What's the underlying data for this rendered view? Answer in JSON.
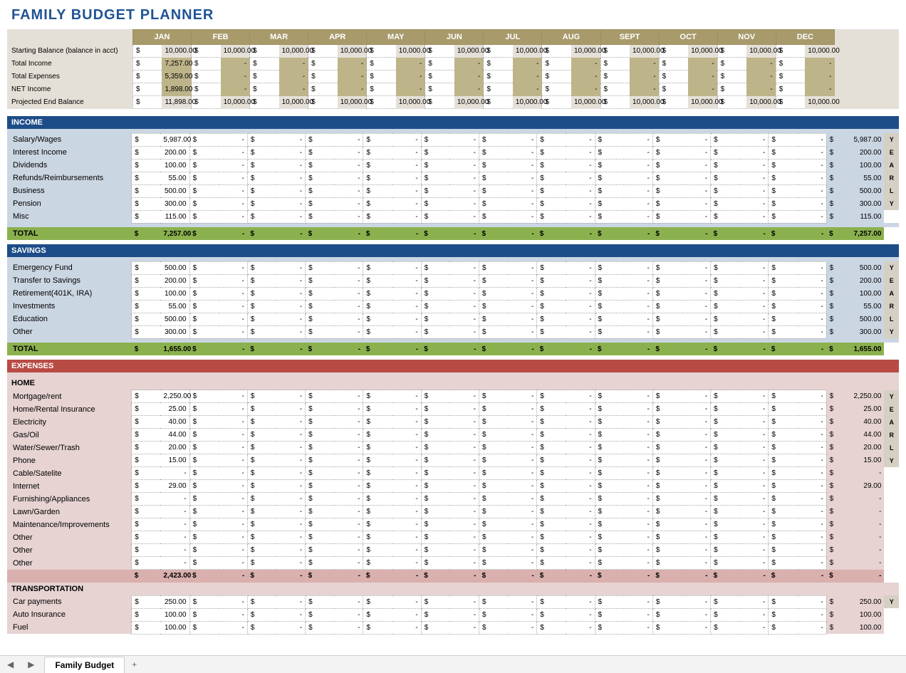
{
  "title": "FAMILY BUDGET PLANNER",
  "months": [
    "JAN",
    "FEB",
    "MAR",
    "APR",
    "MAY",
    "JUN",
    "JUL",
    "AUG",
    "SEPT",
    "OCT",
    "NOV",
    "DEC"
  ],
  "currency": "$",
  "yearly_label": [
    "Y",
    "E",
    "A",
    "R",
    "L",
    "Y"
  ],
  "summary": {
    "rows": [
      {
        "label": "Starting Balance (balance in acct)",
        "highlight": false,
        "cells": [
          "10,000.00",
          "10,000.00",
          "10,000.00",
          "10,000.00",
          "10,000.00",
          "10,000.00",
          "10,000.00",
          "10,000.00",
          "10,000.00",
          "10,000.00",
          "10,000.00",
          "10,000.00"
        ]
      },
      {
        "label": "Total Income",
        "highlight": true,
        "cells": [
          "7,257.00",
          "-",
          "-",
          "-",
          "-",
          "-",
          "-",
          "-",
          "-",
          "-",
          "-",
          "-"
        ]
      },
      {
        "label": "Total Expenses",
        "highlight": true,
        "cells": [
          "5,359.00",
          "-",
          "-",
          "-",
          "-",
          "-",
          "-",
          "-",
          "-",
          "-",
          "-",
          "-"
        ]
      },
      {
        "label": "NET Income",
        "highlight": true,
        "cells": [
          "1,898.00",
          "-",
          "-",
          "-",
          "-",
          "-",
          "-",
          "-",
          "-",
          "-",
          "-",
          "-"
        ]
      },
      {
        "label": "Projected End Balance",
        "highlight": false,
        "cells": [
          "11,898.00",
          "10,000.00",
          "10,000.00",
          "10,000.00",
          "10,000.00",
          "10,000.00",
          "10,000.00",
          "10,000.00",
          "10,000.00",
          "10,000.00",
          "10,000.00",
          "10,000.00"
        ]
      }
    ]
  },
  "sections": [
    {
      "title": "INCOME",
      "bar": "blue",
      "zone": "blue",
      "rows": [
        {
          "label": "Salary/Wages",
          "cells": [
            "5,987.00",
            "-",
            "-",
            "-",
            "-",
            "-",
            "-",
            "-",
            "-",
            "-",
            "-",
            "-"
          ],
          "yearly": "5,987.00"
        },
        {
          "label": "Interest Income",
          "cells": [
            "200.00",
            "-",
            "-",
            "-",
            "-",
            "-",
            "-",
            "-",
            "-",
            "-",
            "-",
            "-"
          ],
          "yearly": "200.00"
        },
        {
          "label": "Dividends",
          "cells": [
            "100.00",
            "-",
            "-",
            "-",
            "-",
            "-",
            "-",
            "-",
            "-",
            "-",
            "-",
            "-"
          ],
          "yearly": "100.00"
        },
        {
          "label": "Refunds/Reimbursements",
          "cells": [
            "55.00",
            "-",
            "-",
            "-",
            "-",
            "-",
            "-",
            "-",
            "-",
            "-",
            "-",
            "-"
          ],
          "yearly": "55.00"
        },
        {
          "label": "Business",
          "cells": [
            "500.00",
            "-",
            "-",
            "-",
            "-",
            "-",
            "-",
            "-",
            "-",
            "-",
            "-",
            "-"
          ],
          "yearly": "500.00"
        },
        {
          "label": "Pension",
          "cells": [
            "300.00",
            "-",
            "-",
            "-",
            "-",
            "-",
            "-",
            "-",
            "-",
            "-",
            "-",
            "-"
          ],
          "yearly": "300.00"
        },
        {
          "label": "Misc",
          "cells": [
            "115.00",
            "-",
            "-",
            "-",
            "-",
            "-",
            "-",
            "-",
            "-",
            "-",
            "-",
            "-"
          ],
          "yearly": "115.00"
        }
      ],
      "total": {
        "label": "TOTAL",
        "cells": [
          "7,257.00",
          "-",
          "-",
          "-",
          "-",
          "-",
          "-",
          "-",
          "-",
          "-",
          "-",
          "-"
        ],
        "yearly": "7,257.00"
      }
    },
    {
      "title": "SAVINGS",
      "bar": "blue",
      "zone": "blue",
      "rows": [
        {
          "label": "Emergency Fund",
          "cells": [
            "500.00",
            "-",
            "-",
            "-",
            "-",
            "-",
            "-",
            "-",
            "-",
            "-",
            "-",
            "-"
          ],
          "yearly": "500.00"
        },
        {
          "label": "Transfer to Savings",
          "cells": [
            "200.00",
            "-",
            "-",
            "-",
            "-",
            "-",
            "-",
            "-",
            "-",
            "-",
            "-",
            "-"
          ],
          "yearly": "200.00"
        },
        {
          "label": "Retirement(401K, IRA)",
          "cells": [
            "100.00",
            "-",
            "-",
            "-",
            "-",
            "-",
            "-",
            "-",
            "-",
            "-",
            "-",
            "-"
          ],
          "yearly": "100.00"
        },
        {
          "label": "Investments",
          "cells": [
            "55.00",
            "-",
            "-",
            "-",
            "-",
            "-",
            "-",
            "-",
            "-",
            "-",
            "-",
            "-"
          ],
          "yearly": "55.00"
        },
        {
          "label": "Education",
          "cells": [
            "500.00",
            "-",
            "-",
            "-",
            "-",
            "-",
            "-",
            "-",
            "-",
            "-",
            "-",
            "-"
          ],
          "yearly": "500.00"
        },
        {
          "label": "Other",
          "cells": [
            "300.00",
            "-",
            "-",
            "-",
            "-",
            "-",
            "-",
            "-",
            "-",
            "-",
            "-",
            "-"
          ],
          "yearly": "300.00"
        }
      ],
      "total": {
        "label": "TOTAL",
        "cells": [
          "1,655.00",
          "-",
          "-",
          "-",
          "-",
          "-",
          "-",
          "-",
          "-",
          "-",
          "-",
          "-"
        ],
        "yearly": "1,655.00"
      }
    },
    {
      "title": "EXPENSES",
      "bar": "red",
      "zone": "pink",
      "groups": [
        {
          "sub": "HOME",
          "rows": [
            {
              "label": "Mortgage/rent",
              "cells": [
                "2,250.00",
                "-",
                "-",
                "-",
                "-",
                "-",
                "-",
                "-",
                "-",
                "-",
                "-",
                "-"
              ],
              "yearly": "2,250.00"
            },
            {
              "label": "Home/Rental Insurance",
              "cells": [
                "25.00",
                "-",
                "-",
                "-",
                "-",
                "-",
                "-",
                "-",
                "-",
                "-",
                "-",
                "-"
              ],
              "yearly": "25.00"
            },
            {
              "label": "Electricity",
              "cells": [
                "40.00",
                "-",
                "-",
                "-",
                "-",
                "-",
                "-",
                "-",
                "-",
                "-",
                "-",
                "-"
              ],
              "yearly": "40.00"
            },
            {
              "label": "Gas/Oil",
              "cells": [
                "44.00",
                "-",
                "-",
                "-",
                "-",
                "-",
                "-",
                "-",
                "-",
                "-",
                "-",
                "-"
              ],
              "yearly": "44.00"
            },
            {
              "label": "Water/Sewer/Trash",
              "cells": [
                "20.00",
                "-",
                "-",
                "-",
                "-",
                "-",
                "-",
                "-",
                "-",
                "-",
                "-",
                "-"
              ],
              "yearly": "20.00"
            },
            {
              "label": "Phone",
              "cells": [
                "15.00",
                "-",
                "-",
                "-",
                "-",
                "-",
                "-",
                "-",
                "-",
                "-",
                "-",
                "-"
              ],
              "yearly": "15.00"
            },
            {
              "label": "Cable/Satelite",
              "cells": [
                "-",
                "-",
                "-",
                "-",
                "-",
                "-",
                "-",
                "-",
                "-",
                "-",
                "-",
                "-"
              ],
              "yearly": "-"
            },
            {
              "label": "Internet",
              "cells": [
                "29.00",
                "-",
                "-",
                "-",
                "-",
                "-",
                "-",
                "-",
                "-",
                "-",
                "-",
                "-"
              ],
              "yearly": "29.00"
            },
            {
              "label": "Furnishing/Appliances",
              "cells": [
                "-",
                "-",
                "-",
                "-",
                "-",
                "-",
                "-",
                "-",
                "-",
                "-",
                "-",
                "-"
              ],
              "yearly": "-"
            },
            {
              "label": "Lawn/Garden",
              "cells": [
                "-",
                "-",
                "-",
                "-",
                "-",
                "-",
                "-",
                "-",
                "-",
                "-",
                "-",
                "-"
              ],
              "yearly": "-"
            },
            {
              "label": "Maintenance/Improvements",
              "cells": [
                "-",
                "-",
                "-",
                "-",
                "-",
                "-",
                "-",
                "-",
                "-",
                "-",
                "-",
                "-"
              ],
              "yearly": "-"
            },
            {
              "label": "Other",
              "cells": [
                "-",
                "-",
                "-",
                "-",
                "-",
                "-",
                "-",
                "-",
                "-",
                "-",
                "-",
                "-"
              ],
              "yearly": "-"
            },
            {
              "label": "Other",
              "cells": [
                "-",
                "-",
                "-",
                "-",
                "-",
                "-",
                "-",
                "-",
                "-",
                "-",
                "-",
                "-"
              ],
              "yearly": "-"
            },
            {
              "label": "Other",
              "cells": [
                "-",
                "-",
                "-",
                "-",
                "-",
                "-",
                "-",
                "-",
                "-",
                "-",
                "-",
                "-"
              ],
              "yearly": "-"
            }
          ],
          "subtotal": {
            "cells": [
              "2,423.00",
              "-",
              "-",
              "-",
              "-",
              "-",
              "-",
              "-",
              "-",
              "-",
              "-",
              "-"
            ],
            "yearly": "-"
          }
        },
        {
          "sub": "TRANSPORTATION",
          "rows": [
            {
              "label": "Car payments",
              "cells": [
                "250.00",
                "-",
                "-",
                "-",
                "-",
                "-",
                "-",
                "-",
                "-",
                "-",
                "-",
                "-"
              ],
              "yearly": "250.00"
            },
            {
              "label": "Auto Insurance",
              "cells": [
                "100.00",
                "-",
                "-",
                "-",
                "-",
                "-",
                "-",
                "-",
                "-",
                "-",
                "-",
                "-"
              ],
              "yearly": "100.00"
            },
            {
              "label": "Fuel",
              "cells": [
                "100.00",
                "-",
                "-",
                "-",
                "-",
                "-",
                "-",
                "-",
                "-",
                "-",
                "-",
                "-"
              ],
              "yearly": "100.00"
            }
          ]
        }
      ]
    }
  ],
  "sheet_tab": "Family Budget",
  "colors": {
    "title": "#1f5494",
    "header_bg": "#a89a6b",
    "summary_bg": "#e5e0d7",
    "summary_highlight": "#bdb489",
    "section_blue": "#1d4d88",
    "section_red": "#b84b44",
    "zone_blue": "#cbd6e3",
    "zone_pink": "#e6d3d2",
    "zone_pinkdark": "#d9b0ae",
    "total_green": "#8bb14e",
    "yearly_block": "#d6d0c4"
  }
}
